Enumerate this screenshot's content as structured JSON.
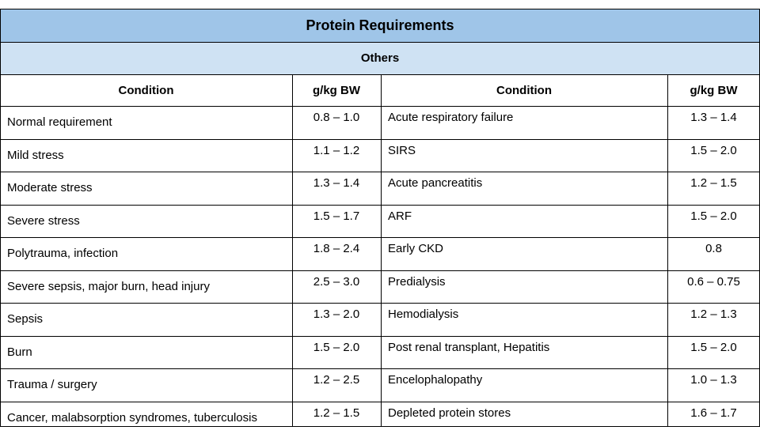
{
  "table": {
    "title": "Protein Requirements",
    "subtitle": "Others",
    "headers": [
      "Condition",
      "g/kg BW",
      "Condition",
      "g/kg BW"
    ],
    "rows": [
      [
        "Normal requirement",
        "0.8 – 1.0",
        "Acute respiratory failure",
        "1.3 – 1.4"
      ],
      [
        "Mild stress",
        "1.1 – 1.2",
        "SIRS",
        "1.5 – 2.0"
      ],
      [
        "Moderate stress",
        "1.3 – 1.4",
        "Acute pancreatitis",
        "1.2 – 1.5"
      ],
      [
        "Severe stress",
        "1.5 – 1.7",
        "ARF",
        "1.5 – 2.0"
      ],
      [
        "Polytrauma, infection",
        "1.8 – 2.4",
        "Early CKD",
        "0.8"
      ],
      [
        "Severe sepsis, major burn, head injury",
        "2.5 – 3.0",
        "Predialysis",
        "0.6 – 0.75"
      ],
      [
        "Sepsis",
        "1.3 – 2.0",
        "Hemodialysis",
        "1.2 – 1.3"
      ],
      [
        "Burn",
        "1.5 – 2.0",
        "Post renal transplant, Hepatitis",
        "1.5 – 2.0"
      ],
      [
        "Trauma / surgery",
        "1.2 – 2.5",
        "Encelophalopathy",
        "1.0 – 1.3"
      ],
      [
        "Cancer, malabsorption syndromes, tuberculosis",
        "1.2 – 1.5",
        "Depleted protein stores",
        "1.6 – 1.7"
      ]
    ]
  },
  "colors": {
    "title_bg": "#9fc5e8",
    "subtitle_bg": "#cfe2f3",
    "border": "#000000"
  }
}
